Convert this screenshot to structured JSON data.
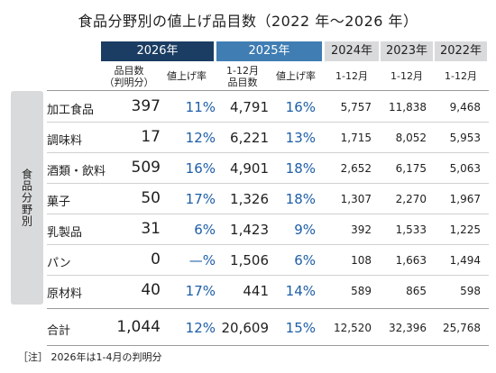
{
  "title": "食品分野別の値上げ品目数（2022 年～2026 年）",
  "headers": {
    "y2026": "2026年",
    "y2025": "2025年",
    "y2024": "2024年",
    "y2023": "2023年",
    "y2022": "2022年"
  },
  "subheaders": {
    "count2026": "品目数\n（判明分）",
    "rate2026": "値上げ率",
    "count2025": "1-12月\n品目数",
    "rate2025": "値上げ率",
    "p2024": "1-12月",
    "p2023": "1-12月",
    "p2022": "1-12月"
  },
  "side_label": "食品分野別",
  "note": "［注］ 2026年は1-4月の判明分",
  "colors": {
    "y2026": "#1b3d63",
    "y2025": "#3f7db3",
    "past": "#d9dadb",
    "rate_text": "#1d5ea8"
  },
  "chart_data": {
    "type": "table",
    "title": "食品分野別の値上げ品目数（2022 年～2026 年）",
    "columns": [
      "2026年 品目数（判明分）",
      "2026年 値上げ率",
      "2025年 1-12月 品目数",
      "2025年 値上げ率",
      "2024年 1-12月",
      "2023年 1-12月",
      "2022年 1-12月"
    ],
    "rows": [
      {
        "label": "加工食品",
        "c2026": "397",
        "r2026": "11%",
        "c2025": "4,791",
        "r2025": "16%",
        "c2024": "5,757",
        "c2023": "11,838",
        "c2022": "9,468"
      },
      {
        "label": "調味料",
        "c2026": "17",
        "r2026": "12%",
        "c2025": "6,221",
        "r2025": "13%",
        "c2024": "1,715",
        "c2023": "8,052",
        "c2022": "5,953"
      },
      {
        "label": "酒類・飲料",
        "c2026": "509",
        "r2026": "16%",
        "c2025": "4,901",
        "r2025": "18%",
        "c2024": "2,652",
        "c2023": "6,175",
        "c2022": "5,063"
      },
      {
        "label": "菓子",
        "c2026": "50",
        "r2026": "17%",
        "c2025": "1,326",
        "r2025": "18%",
        "c2024": "1,307",
        "c2023": "2,270",
        "c2022": "1,967"
      },
      {
        "label": "乳製品",
        "c2026": "31",
        "r2026": "6%",
        "c2025": "1,423",
        "r2025": "9%",
        "c2024": "392",
        "c2023": "1,533",
        "c2022": "1,225"
      },
      {
        "label": "パン",
        "c2026": "0",
        "r2026": "—%",
        "c2025": "1,506",
        "r2025": "6%",
        "c2024": "108",
        "c2023": "1,663",
        "c2022": "1,494"
      },
      {
        "label": "原材料",
        "c2026": "40",
        "r2026": "17%",
        "c2025": "441",
        "r2025": "14%",
        "c2024": "589",
        "c2023": "865",
        "c2022": "598"
      }
    ],
    "total": {
      "label": "合計",
      "c2026": "1,044",
      "r2026": "12%",
      "c2025": "20,609",
      "r2025": "15%",
      "c2024": "12,520",
      "c2023": "32,396",
      "c2022": "25,768"
    }
  }
}
